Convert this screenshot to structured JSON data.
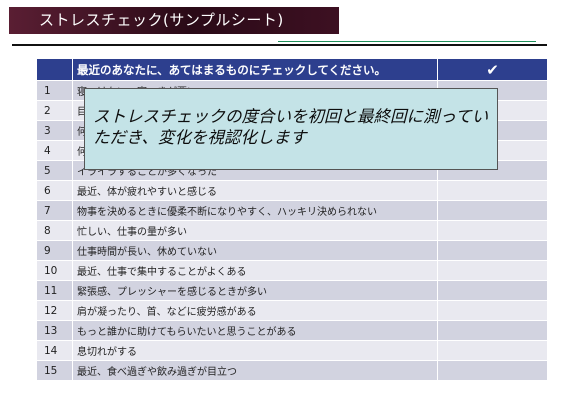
{
  "title": "ストレスチェック(サンプルシート)",
  "table": {
    "header_question": "最近のあなたに、あてはまるものにチェックしてください。",
    "header_check": "✔",
    "rows": [
      {
        "num": "1",
        "text": "寝つけない、寝つきが悪い"
      },
      {
        "num": "2",
        "text": "目覚めが悪く、朝起きるのがつらい"
      },
      {
        "num": "3",
        "text": "何をするにもおっくうに感じる"
      },
      {
        "num": "4",
        "text": "何事にも興味がわかない"
      },
      {
        "num": "5",
        "text": "イライラすることが多くなった"
      },
      {
        "num": "6",
        "text": "最近、体が疲れやすいと感じる"
      },
      {
        "num": "7",
        "text": "物事を決めるときに優柔不断になりやすく、ハッキリ決められない"
      },
      {
        "num": "8",
        "text": "忙しい、仕事の量が多い"
      },
      {
        "num": "9",
        "text": "仕事時間が長い、休めていない"
      },
      {
        "num": "10",
        "text": "最近、仕事で集中することがよくある"
      },
      {
        "num": "11",
        "text": "緊張感、プレッシャーを感じるときが多い"
      },
      {
        "num": "12",
        "text": "肩が凝ったり、首、などに疲労感がある"
      },
      {
        "num": "13",
        "text": "もっと誰かに助けてもらいたいと思うことがある"
      },
      {
        "num": "14",
        "text": "息切れがする"
      },
      {
        "num": "15",
        "text": "最近、食べ過ぎや飲み過ぎが目立つ"
      }
    ]
  },
  "callout": {
    "text": "ストレスチェックの度合いを初回と最終回に測っていただき、変化を視認化します"
  },
  "colors": {
    "header_bg": "#2d3f8e",
    "row_odd": "#d2d3e0",
    "row_even": "#e9e9f0",
    "callout_bg": "#c4e3e7",
    "title_bg": "#3d1022"
  }
}
